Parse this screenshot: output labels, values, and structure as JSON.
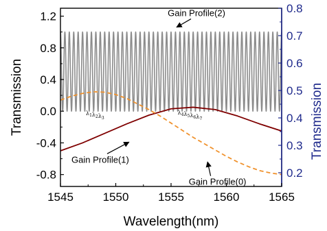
{
  "chart_data": {
    "type": "line",
    "title": "",
    "xlabel": "Wavelength(nm)",
    "ylabel_left": "Transmission",
    "ylabel_right": "Transmission",
    "xlim": [
      1545,
      1565
    ],
    "ylim_left": [
      -0.95,
      1.3
    ],
    "ylim_right": [
      0.15,
      0.8
    ],
    "x_ticks": [
      "1545",
      "1550",
      "1555",
      "1560",
      "1565"
    ],
    "y_left_ticks": [
      {
        "value": -0.8,
        "label": "-0.8"
      },
      {
        "value": -0.4,
        "label": "-0.4"
      },
      {
        "value": 0.0,
        "label": "0.0"
      },
      {
        "value": 0.4,
        "label": "0.4"
      },
      {
        "value": 0.8,
        "label": "0.8"
      },
      {
        "value": 1.2,
        "label": "1.2"
      }
    ],
    "y_right_ticks": [
      {
        "value": 0.2,
        "label": "0.2"
      },
      {
        "value": 0.3,
        "label": "0.3"
      },
      {
        "value": 0.4,
        "label": "0.4"
      },
      {
        "value": 0.5,
        "label": "0.5"
      },
      {
        "value": 0.6,
        "label": "0.6"
      },
      {
        "value": 0.7,
        "label": "0.7"
      },
      {
        "value": 0.8,
        "label": "0.8"
      }
    ],
    "grid": false,
    "series": [
      {
        "name": "Gain Profile(2)",
        "axis": "left",
        "style": "solid",
        "color": "#8c8c8c",
        "curve": "comb",
        "period_nm": 0.4,
        "min": 0.0,
        "max": 1.0
      },
      {
        "name": "Gain Profile(1)",
        "axis": "left",
        "style": "solid",
        "color": "#7f0000",
        "x": [
          1545,
          1547,
          1549,
          1551,
          1553,
          1555,
          1557,
          1559,
          1561,
          1563,
          1565
        ],
        "y": [
          -0.5,
          -0.4,
          -0.28,
          -0.16,
          -0.05,
          0.03,
          0.05,
          0.02,
          -0.06,
          -0.16,
          -0.25
        ]
      },
      {
        "name": "Gain Profile(0)",
        "axis": "left",
        "style": "dashed",
        "color": "#f0922d",
        "x": [
          1545,
          1546,
          1547,
          1548,
          1549,
          1550,
          1551,
          1552,
          1553,
          1554,
          1555,
          1556,
          1557,
          1558,
          1559,
          1560,
          1561,
          1562,
          1563,
          1564,
          1565
        ],
        "y": [
          0.14,
          0.19,
          0.225,
          0.245,
          0.24,
          0.21,
          0.16,
          0.09,
          0.02,
          -0.06,
          -0.15,
          -0.24,
          -0.33,
          -0.41,
          -0.49,
          -0.57,
          -0.64,
          -0.7,
          -0.75,
          -0.78,
          -0.8
        ]
      }
    ],
    "annotations": [
      {
        "text": "Gain Profile(2)",
        "x": 1557.3,
        "y": 1.2,
        "arrow_to": [
          1555.5,
          1.06
        ]
      },
      {
        "text": "Gain Profile(1)",
        "x": 1548.6,
        "y": -0.65,
        "arrow_to": [
          1551.2,
          -0.39
        ]
      },
      {
        "text": "Gain Profile(0)",
        "x": 1559.2,
        "y": -0.93,
        "arrow_to": [
          1558.3,
          -0.64
        ]
      }
    ],
    "wavelength_markers": [
      {
        "group": "left",
        "x": 1547.3,
        "y": -0.05,
        "labels": [
          "λ",
          "λ",
          "λ"
        ],
        "subscripts": [
          "1",
          "2",
          "3"
        ]
      },
      {
        "group": "right",
        "x": 1555.6,
        "y": -0.04,
        "labels": [
          "λ",
          "λ",
          "λ",
          "λ"
        ],
        "subscripts": [
          "4",
          "5",
          "6",
          "7"
        ]
      }
    ]
  }
}
